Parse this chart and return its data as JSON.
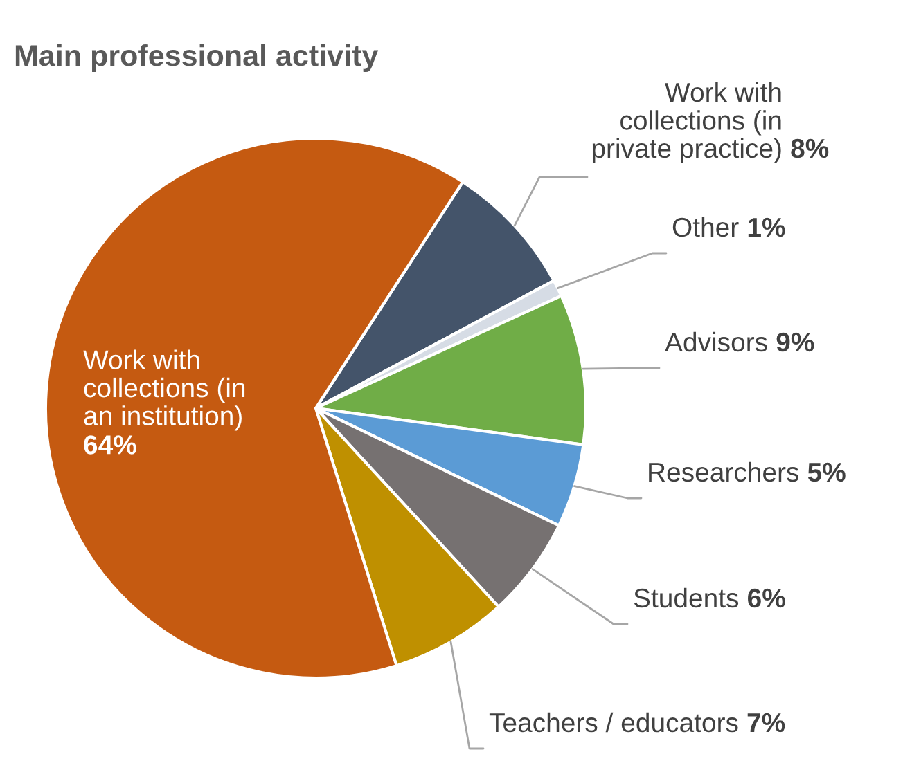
{
  "chart_data": {
    "type": "pie",
    "title": "Main professional activity",
    "categories": [
      "Work with\ncollections (in\nprivate practice)",
      "Other",
      "Advisors",
      "Researchers",
      "Students",
      "Teachers / educators",
      "Work with\ncollections (in\nan institution)"
    ],
    "values": [
      8,
      1,
      9,
      5,
      6,
      7,
      64
    ],
    "value_labels": [
      "8%",
      "1%",
      "9%",
      "5%",
      "6%",
      "7%",
      "64%"
    ],
    "colors": [
      "#44546a",
      "#d6dce5",
      "#70ad47",
      "#5b9bd5",
      "#767171",
      "#bf9000",
      "#c55a11"
    ]
  }
}
